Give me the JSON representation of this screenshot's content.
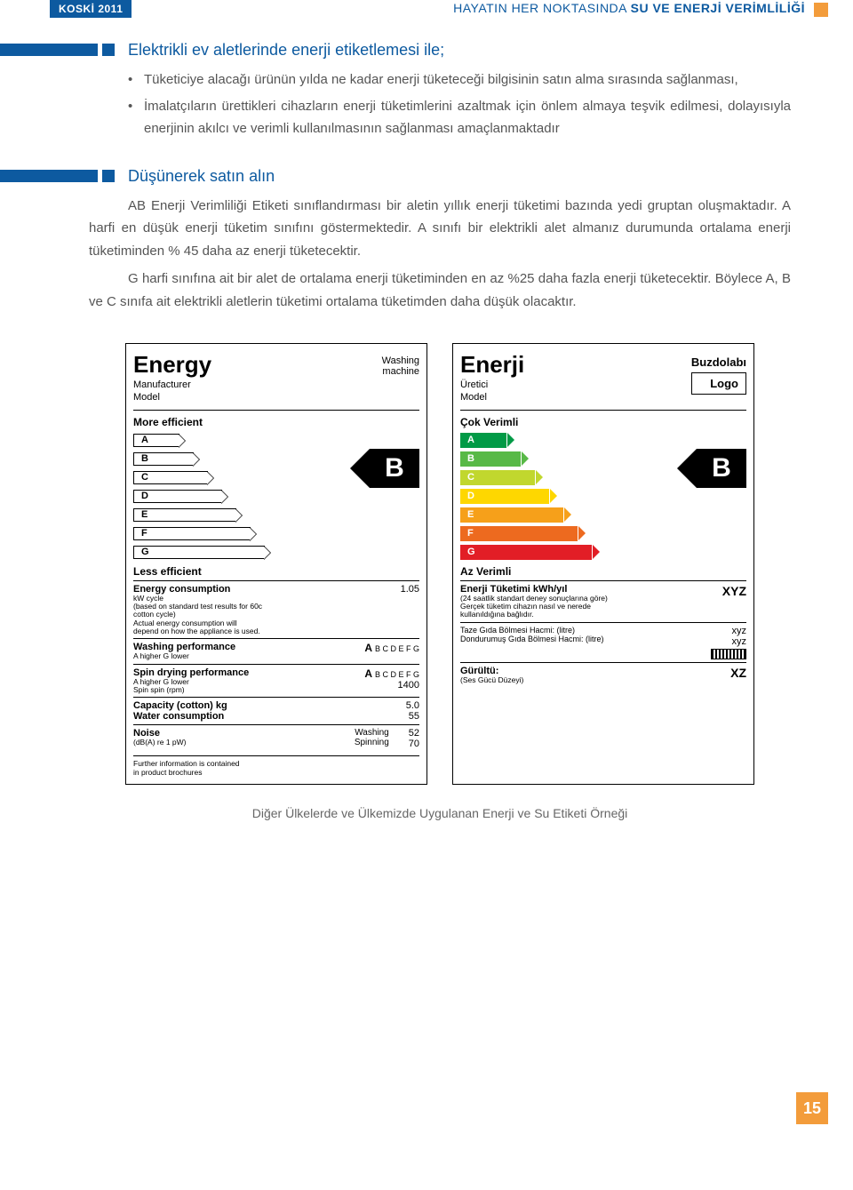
{
  "header": {
    "left": "KOSKİ 2011",
    "right_light": "HAYATIN HER NOKTASINDA ",
    "right_bold": "SU VE ENERJİ VERİMLİLİĞİ"
  },
  "section1": {
    "title": "Elektrikli ev aletlerinde enerji etiketlemesi ile;",
    "bullets": [
      "Tüketiciye alacağı ürünün yılda ne kadar enerji tüketeceği bilgisinin satın alma sırasında sağlanması,",
      "İmalatçıların ürettikleri cihazların enerji tüketimlerini azaltmak için önlem almaya teşvik edilmesi, dolayısıyla enerjinin akılcı ve verimli kullanılmasının sağlanması amaçlanmaktadır"
    ]
  },
  "section2": {
    "title": "Düşünerek satın alın",
    "p1": "AB Enerji Verimliliği Etiketi sınıflandırması bir aletin yıllık enerji tüketimi bazında yedi gruptan oluşmaktadır. A harfi en düşük enerji tüketim sınıfını göstermektedir. A sınıfı bir elektrikli alet almanız durumunda ortalama enerji tüketiminden % 45 daha az enerji tüketecektir.",
    "p2": "G harfi sınıfına ait bir alet de ortalama enerji tüketiminden en az %25 daha fazla enerji tüketecektir. Böylece A, B ve C sınıfa ait elektrikli aletlerin tüketimi ortalama tüketimden daha düşük olacaktır."
  },
  "energy_labels": {
    "colors": {
      "A": "#019a46",
      "B": "#58b947",
      "C": "#c1d72e",
      "D": "#fed700",
      "E": "#f6a01a",
      "F": "#ed6a1f",
      "G": "#e21e26"
    },
    "widths": [
      52,
      68,
      84,
      100,
      116,
      132,
      148
    ],
    "left": {
      "brand": "Energy",
      "appliance": "Washing\nmachine",
      "manufacturer": "Manufacturer",
      "model": "Model",
      "more": "More efficient",
      "less": "Less efficient",
      "grade": "B",
      "grades": [
        "A",
        "B",
        "C",
        "D",
        "E",
        "F",
        "G"
      ],
      "outline": true,
      "rows": [
        {
          "name": "Energy consumption",
          "sub": "kW cycle\n(based on standard test results for 60c\ncotton cycle)\nActual energy consumption will\ndepend on how the appliance is used.",
          "val": "1.05"
        },
        {
          "name": "Washing performance",
          "sub": "A higher  G lower",
          "val": "A B C D E F G",
          "letters": true
        },
        {
          "name": "Spin drying performance",
          "sub": "A higher  G lower\nSpin spin (rpm)",
          "val": "A B C D E F G\n1400",
          "letters": true
        },
        {
          "name": "Capacity (cotton) kg\nWater consumption",
          "sub": "",
          "val": "5.0\n55"
        },
        {
          "name": "Noise",
          "sub": "(dB(A) re 1 pW)",
          "right_name": "Washing\nSpinning",
          "val": "52\n70"
        }
      ],
      "foot": "Further information is contained\nin product brochures"
    },
    "right": {
      "brand": "Enerji",
      "appliance": "Buzdolabı",
      "manufacturer": "Üretici",
      "model": "Model",
      "logo": "Logo",
      "more": "Çok Verimli",
      "less": "Az Verimli",
      "grade": "B",
      "grades": [
        "A",
        "B",
        "C",
        "D",
        "E",
        "F",
        "G"
      ],
      "outline": false,
      "rows": [
        {
          "name": "Enerji Tüketimi kWh/yıl",
          "sub": "(24 saatlik standart deney sonuçlarına göre)\nGerçek tüketim cihazın nasıl ve nerede\nkullanıldığına bağlıdır.",
          "val": "XYZ",
          "valbold": true
        },
        {
          "name": "",
          "plain": "Taze Gıda Bölmesi Hacmi: (litre)\nDondurumuş Gıda Bölmesi Hacmi: (litre)",
          "val": "xyz\nxyz",
          "stars": true
        },
        {
          "name": "Gürültü:",
          "sub": "(Ses Gücü Düzeyi)",
          "val": "XZ",
          "valbold": true
        }
      ]
    }
  },
  "caption": "Diğer Ülkelerde ve Ülkemizde Uygulanan Enerji ve Su Etiketi Örneği",
  "page": "15"
}
